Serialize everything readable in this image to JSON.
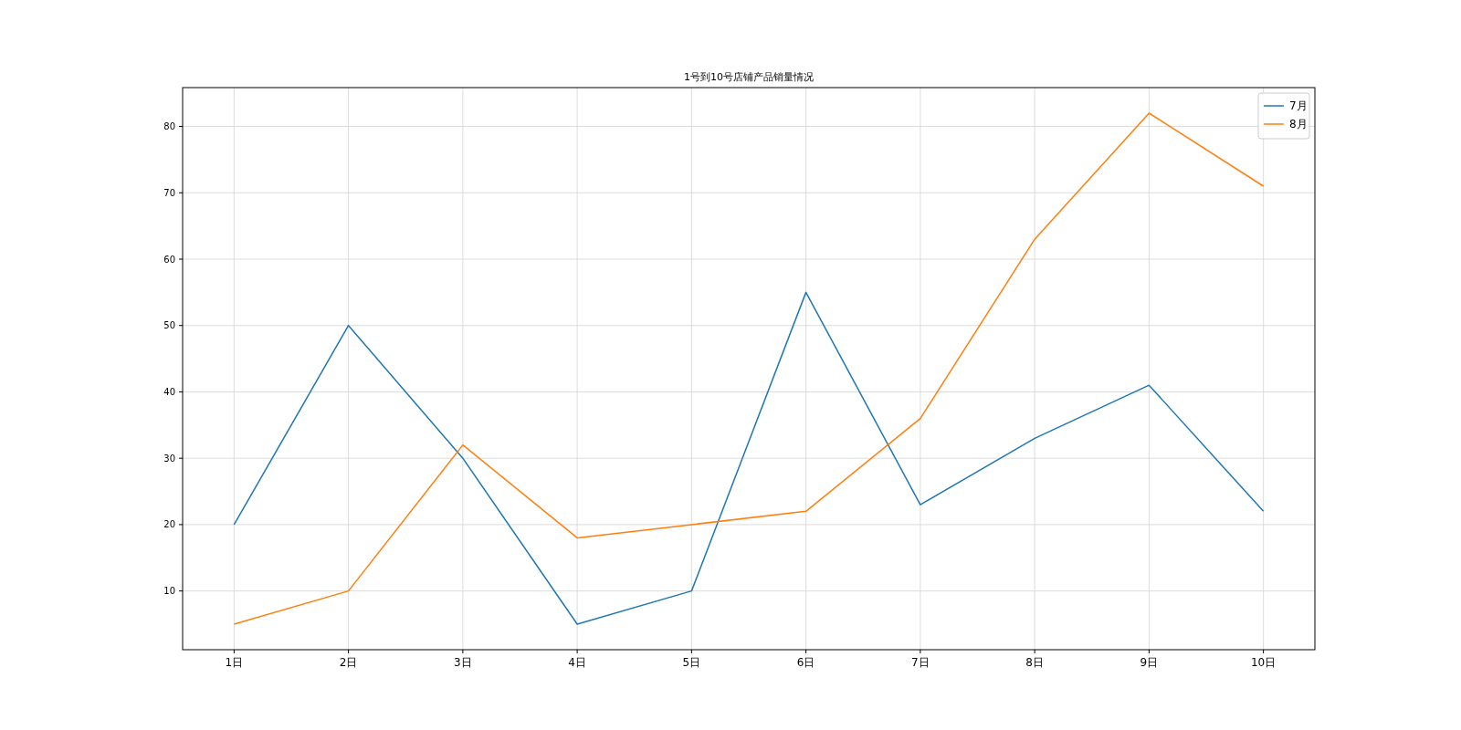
{
  "chart_data": {
    "type": "line",
    "title": "1号到10号店铺产品销量情况",
    "categories": [
      "1日",
      "2日",
      "3日",
      "4日",
      "5日",
      "6日",
      "7日",
      "8日",
      "9日",
      "10日"
    ],
    "series": [
      {
        "name": "7月",
        "color": "#1f77b4",
        "values": [
          20,
          50,
          30,
          5,
          10,
          55,
          23,
          33,
          41,
          22
        ]
      },
      {
        "name": "8月",
        "color": "#ff7f0e",
        "values": [
          5,
          10,
          32,
          18,
          20,
          22,
          36,
          63,
          82,
          71
        ]
      }
    ],
    "ylim": [
      1.15,
      85.85
    ],
    "yticks": [
      10,
      20,
      30,
      40,
      50,
      60,
      70,
      80
    ],
    "grid": true,
    "legend": "top right"
  }
}
